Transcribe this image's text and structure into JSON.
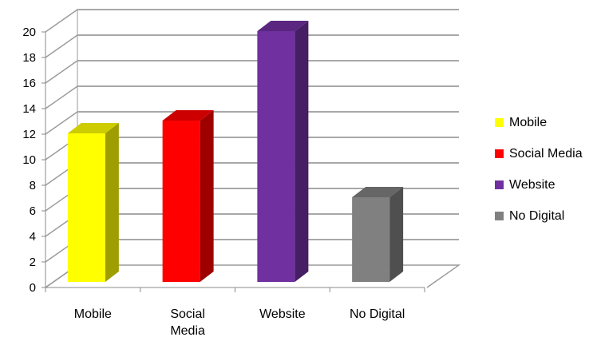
{
  "chart_data": {
    "type": "bar",
    "categories": [
      "Mobile",
      "Social Media",
      "Website",
      "No Digital"
    ],
    "category_labels": [
      [
        "Mobile"
      ],
      [
        "Social",
        "Media"
      ],
      [
        "Website"
      ],
      [
        "No Digital"
      ]
    ],
    "values": [
      12,
      13,
      20,
      7
    ],
    "colors": [
      "#ffff00",
      "#ff0000",
      "#7030a0",
      "#808080"
    ],
    "title": "",
    "xlabel": "",
    "ylabel": "",
    "ylim": [
      0,
      20
    ],
    "yticks": [
      "0",
      "2",
      "4",
      "6",
      "8",
      "10",
      "12",
      "14",
      "16",
      "18",
      "20"
    ],
    "grid": true,
    "style": "3d-column",
    "legend": {
      "position": "right",
      "entries": [
        "Mobile",
        "Social Media",
        "Website",
        "No Digital"
      ]
    }
  }
}
